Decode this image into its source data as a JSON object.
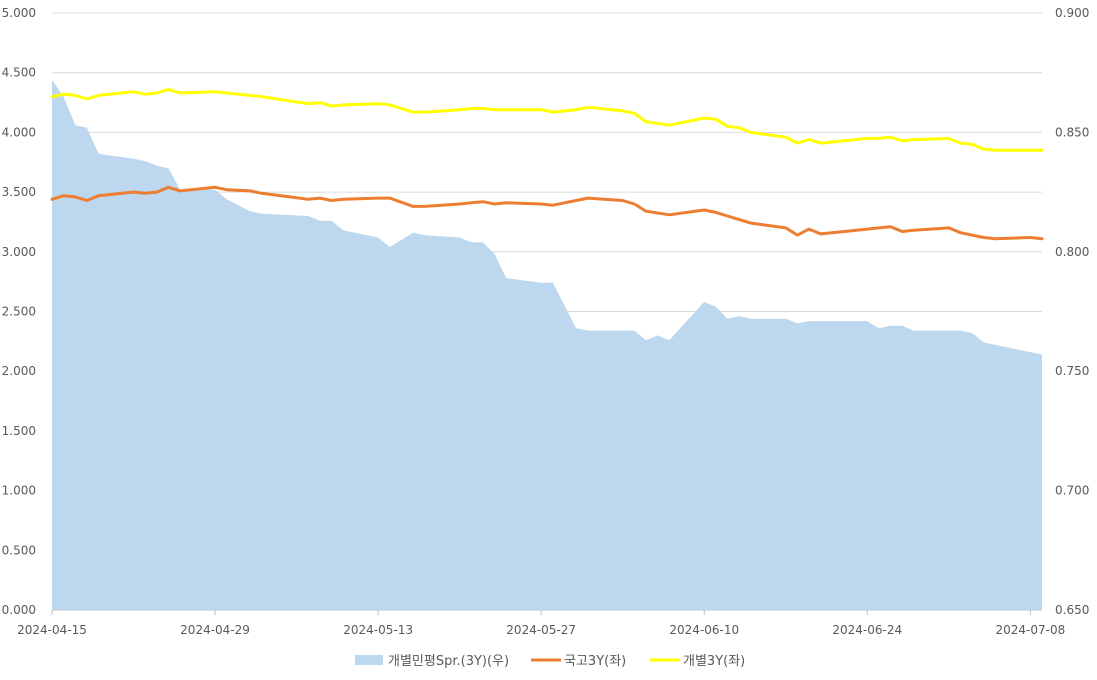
{
  "chart_data": {
    "type": "area+line",
    "legend_position": "bottom",
    "grid": true,
    "colors": {
      "spread": "#bdd7ee",
      "gov": "#ed7d31",
      "indiv": "#ffff00",
      "grid": "#d9d9d9",
      "tick": "#595959"
    },
    "x": {
      "start": "2024-04-15",
      "end": "2024-07-09",
      "ticks": [
        "2024-04-15",
        "2024-04-29",
        "2024-05-13",
        "2024-05-27",
        "2024-06-10",
        "2024-06-24",
        "2024-07-08"
      ]
    },
    "y_left": {
      "ylim": [
        0,
        5
      ],
      "ticks": [
        "0.000",
        "0.500",
        "1.000",
        "1.500",
        "2.000",
        "2.500",
        "3.000",
        "3.500",
        "4.000",
        "4.500",
        "5.000"
      ]
    },
    "y_right": {
      "ylim": [
        0.65,
        0.9
      ],
      "ticks": [
        "0.650",
        "0.700",
        "0.750",
        "0.800",
        "0.850",
        "0.900"
      ]
    },
    "series": [
      {
        "name": "개별민평Spr.(3Y)(우)",
        "kind": "area",
        "axis": "right",
        "points": [
          [
            "2024-04-15",
            0.872
          ],
          [
            "2024-04-16",
            0.865
          ],
          [
            "2024-04-17",
            0.853
          ],
          [
            "2024-04-18",
            0.852
          ],
          [
            "2024-04-19",
            0.841
          ],
          [
            "2024-04-22",
            0.839
          ],
          [
            "2024-04-23",
            0.838
          ],
          [
            "2024-04-24",
            0.836
          ],
          [
            "2024-04-25",
            0.835
          ],
          [
            "2024-04-26",
            0.826
          ],
          [
            "2024-04-29",
            0.826
          ],
          [
            "2024-04-30",
            0.822
          ],
          [
            "2024-05-02",
            0.817
          ],
          [
            "2024-05-03",
            0.816
          ],
          [
            "2024-05-07",
            0.815
          ],
          [
            "2024-05-08",
            0.813
          ],
          [
            "2024-05-09",
            0.813
          ],
          [
            "2024-05-10",
            0.809
          ],
          [
            "2024-05-13",
            0.806
          ],
          [
            "2024-05-14",
            0.802
          ],
          [
            "2024-05-16",
            0.808
          ],
          [
            "2024-05-17",
            0.807
          ],
          [
            "2024-05-20",
            0.806
          ],
          [
            "2024-05-21",
            0.804
          ],
          [
            "2024-05-22",
            0.804
          ],
          [
            "2024-05-23",
            0.799
          ],
          [
            "2024-05-24",
            0.789
          ],
          [
            "2024-05-27",
            0.787
          ],
          [
            "2024-05-28",
            0.787
          ],
          [
            "2024-05-30",
            0.768
          ],
          [
            "2024-05-31",
            0.767
          ],
          [
            "2024-06-03",
            0.767
          ],
          [
            "2024-06-04",
            0.767
          ],
          [
            "2024-06-05",
            0.763
          ],
          [
            "2024-06-06",
            0.765
          ],
          [
            "2024-06-07",
            0.763
          ],
          [
            "2024-06-10",
            0.779
          ],
          [
            "2024-06-11",
            0.777
          ],
          [
            "2024-06-12",
            0.772
          ],
          [
            "2024-06-13",
            0.773
          ],
          [
            "2024-06-14",
            0.772
          ],
          [
            "2024-06-17",
            0.772
          ],
          [
            "2024-06-18",
            0.77
          ],
          [
            "2024-06-19",
            0.771
          ],
          [
            "2024-06-20",
            0.771
          ],
          [
            "2024-06-21",
            0.771
          ],
          [
            "2024-06-24",
            0.771
          ],
          [
            "2024-06-25",
            0.768
          ],
          [
            "2024-06-26",
            0.769
          ],
          [
            "2024-06-27",
            0.769
          ],
          [
            "2024-06-28",
            0.767
          ],
          [
            "2024-07-01",
            0.767
          ],
          [
            "2024-07-02",
            0.767
          ],
          [
            "2024-07-03",
            0.766
          ],
          [
            "2024-07-04",
            0.762
          ],
          [
            "2024-07-05",
            0.761
          ],
          [
            "2024-07-08",
            0.758
          ],
          [
            "2024-07-09",
            0.757
          ]
        ]
      },
      {
        "name": "국고3Y(좌)",
        "kind": "line",
        "axis": "left",
        "points": [
          [
            "2024-04-15",
            3.44
          ],
          [
            "2024-04-16",
            3.47
          ],
          [
            "2024-04-17",
            3.46
          ],
          [
            "2024-04-18",
            3.43
          ],
          [
            "2024-04-19",
            3.47
          ],
          [
            "2024-04-22",
            3.5
          ],
          [
            "2024-04-23",
            3.49
          ],
          [
            "2024-04-24",
            3.5
          ],
          [
            "2024-04-25",
            3.54
          ],
          [
            "2024-04-26",
            3.51
          ],
          [
            "2024-04-29",
            3.54
          ],
          [
            "2024-04-30",
            3.52
          ],
          [
            "2024-05-02",
            3.51
          ],
          [
            "2024-05-03",
            3.49
          ],
          [
            "2024-05-07",
            3.44
          ],
          [
            "2024-05-08",
            3.45
          ],
          [
            "2024-05-09",
            3.43
          ],
          [
            "2024-05-10",
            3.44
          ],
          [
            "2024-05-13",
            3.45
          ],
          [
            "2024-05-14",
            3.45
          ],
          [
            "2024-05-16",
            3.38
          ],
          [
            "2024-05-17",
            3.38
          ],
          [
            "2024-05-20",
            3.4
          ],
          [
            "2024-05-21",
            3.41
          ],
          [
            "2024-05-22",
            3.42
          ],
          [
            "2024-05-23",
            3.4
          ],
          [
            "2024-05-24",
            3.41
          ],
          [
            "2024-05-27",
            3.4
          ],
          [
            "2024-05-28",
            3.39
          ],
          [
            "2024-05-30",
            3.43
          ],
          [
            "2024-05-31",
            3.45
          ],
          [
            "2024-06-03",
            3.43
          ],
          [
            "2024-06-04",
            3.4
          ],
          [
            "2024-06-05",
            3.34
          ],
          [
            "2024-06-07",
            3.31
          ],
          [
            "2024-06-10",
            3.35
          ],
          [
            "2024-06-11",
            3.33
          ],
          [
            "2024-06-12",
            3.3
          ],
          [
            "2024-06-13",
            3.27
          ],
          [
            "2024-06-14",
            3.24
          ],
          [
            "2024-06-17",
            3.2
          ],
          [
            "2024-06-18",
            3.14
          ],
          [
            "2024-06-19",
            3.19
          ],
          [
            "2024-06-20",
            3.15
          ],
          [
            "2024-06-21",
            3.16
          ],
          [
            "2024-06-24",
            3.19
          ],
          [
            "2024-06-25",
            3.2
          ],
          [
            "2024-06-26",
            3.21
          ],
          [
            "2024-06-27",
            3.17
          ],
          [
            "2024-06-28",
            3.18
          ],
          [
            "2024-07-01",
            3.2
          ],
          [
            "2024-07-02",
            3.16
          ],
          [
            "2024-07-03",
            3.14
          ],
          [
            "2024-07-04",
            3.12
          ],
          [
            "2024-07-05",
            3.11
          ],
          [
            "2024-07-08",
            3.12
          ],
          [
            "2024-07-09",
            3.11
          ]
        ]
      },
      {
        "name": "개별3Y(좌)",
        "kind": "line",
        "axis": "left",
        "points": [
          [
            "2024-04-15",
            4.3
          ],
          [
            "2024-04-16",
            4.32
          ],
          [
            "2024-04-17",
            4.31
          ],
          [
            "2024-04-18",
            4.28
          ],
          [
            "2024-04-19",
            4.31
          ],
          [
            "2024-04-22",
            4.34
          ],
          [
            "2024-04-23",
            4.32
          ],
          [
            "2024-04-24",
            4.33
          ],
          [
            "2024-04-25",
            4.36
          ],
          [
            "2024-04-26",
            4.33
          ],
          [
            "2024-04-29",
            4.34
          ],
          [
            "2024-04-30",
            4.33
          ],
          [
            "2024-05-02",
            4.31
          ],
          [
            "2024-05-03",
            4.3
          ],
          [
            "2024-05-07",
            4.24
          ],
          [
            "2024-05-08",
            4.25
          ],
          [
            "2024-05-09",
            4.22
          ],
          [
            "2024-05-10",
            4.23
          ],
          [
            "2024-05-13",
            4.24
          ],
          [
            "2024-05-14",
            4.23
          ],
          [
            "2024-05-16",
            4.17
          ],
          [
            "2024-05-17",
            4.17
          ],
          [
            "2024-05-20",
            4.19
          ],
          [
            "2024-05-21",
            4.2
          ],
          [
            "2024-05-22",
            4.2
          ],
          [
            "2024-05-23",
            4.19
          ],
          [
            "2024-05-24",
            4.19
          ],
          [
            "2024-05-27",
            4.19
          ],
          [
            "2024-05-28",
            4.17
          ],
          [
            "2024-05-30",
            4.19
          ],
          [
            "2024-05-31",
            4.21
          ],
          [
            "2024-06-03",
            4.18
          ],
          [
            "2024-06-04",
            4.16
          ],
          [
            "2024-06-05",
            4.09
          ],
          [
            "2024-06-07",
            4.06
          ],
          [
            "2024-06-10",
            4.12
          ],
          [
            "2024-06-11",
            4.11
          ],
          [
            "2024-06-12",
            4.05
          ],
          [
            "2024-06-13",
            4.04
          ],
          [
            "2024-06-14",
            4.0
          ],
          [
            "2024-06-17",
            3.96
          ],
          [
            "2024-06-18",
            3.91
          ],
          [
            "2024-06-19",
            3.94
          ],
          [
            "2024-06-20",
            3.91
          ],
          [
            "2024-06-21",
            3.92
          ],
          [
            "2024-06-24",
            3.95
          ],
          [
            "2024-06-25",
            3.95
          ],
          [
            "2024-06-26",
            3.96
          ],
          [
            "2024-06-27",
            3.93
          ],
          [
            "2024-06-28",
            3.94
          ],
          [
            "2024-07-01",
            3.95
          ],
          [
            "2024-07-02",
            3.91
          ],
          [
            "2024-07-03",
            3.9
          ],
          [
            "2024-07-04",
            3.86
          ],
          [
            "2024-07-05",
            3.85
          ],
          [
            "2024-07-08",
            3.85
          ],
          [
            "2024-07-09",
            3.85
          ]
        ]
      }
    ]
  }
}
